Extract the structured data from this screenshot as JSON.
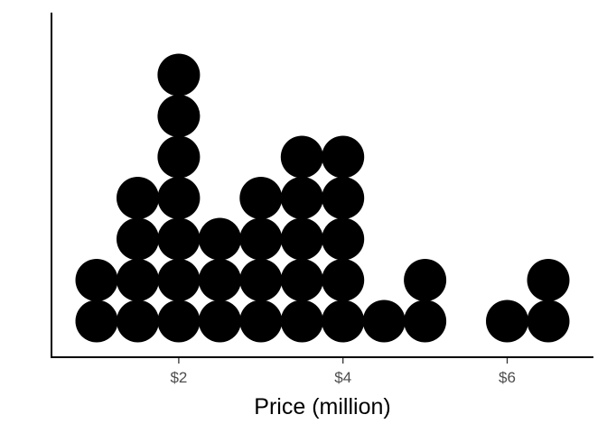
{
  "chart_data": {
    "type": "dotplot",
    "title": "",
    "xlabel": "Price (million)",
    "ylabel": "",
    "xlim": [
      0.45,
      7.05
    ],
    "x_ticks": [
      {
        "value": 2,
        "label": "$2"
      },
      {
        "value": 4,
        "label": "$4"
      },
      {
        "value": 6,
        "label": "$6"
      }
    ],
    "grid": false,
    "dot_color": "#000000",
    "bins": [
      {
        "x": 1.0,
        "count": 2
      },
      {
        "x": 1.5,
        "count": 4
      },
      {
        "x": 2.0,
        "count": 7
      },
      {
        "x": 2.5,
        "count": 3
      },
      {
        "x": 3.0,
        "count": 4
      },
      {
        "x": 3.5,
        "count": 5
      },
      {
        "x": 4.0,
        "count": 5
      },
      {
        "x": 4.5,
        "count": 1
      },
      {
        "x": 5.0,
        "count": 2
      },
      {
        "x": 6.0,
        "count": 1
      },
      {
        "x": 6.5,
        "count": 2
      }
    ]
  }
}
